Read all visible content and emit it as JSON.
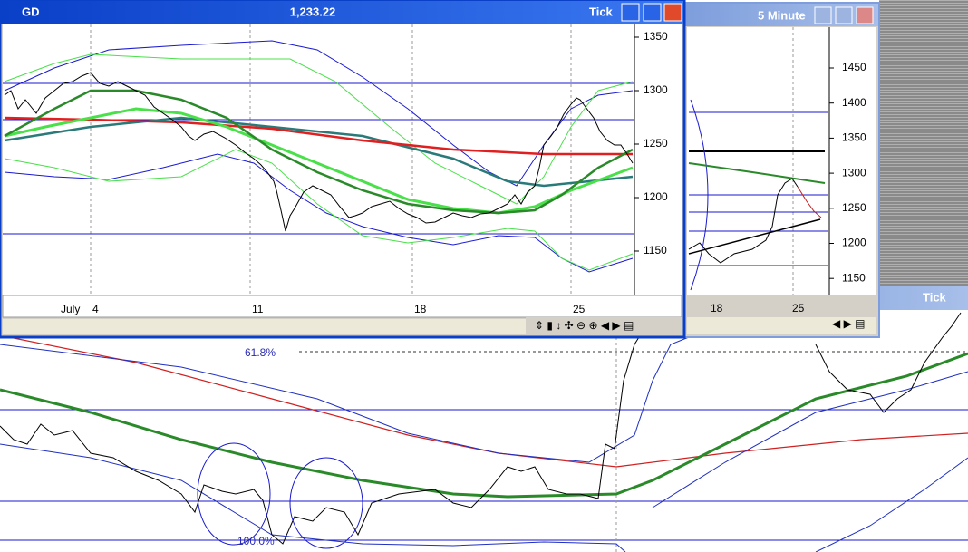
{
  "main_window": {
    "symbol": "GD",
    "price": "1,233.22",
    "interval": "Tick",
    "yticks": [
      1350,
      1300,
      1250,
      1200,
      1150
    ],
    "dates": [
      "July",
      "4",
      "11",
      "18",
      "25"
    ]
  },
  "minute_window": {
    "title": "5 Minute",
    "yticks": [
      1450,
      1400,
      1350,
      1300,
      1250,
      1200,
      1150
    ],
    "dates": [
      "18",
      "25"
    ]
  },
  "tick_window": {
    "title": "Tick"
  },
  "background_chart": {
    "fib_labels": [
      "61.8%",
      "100.0%"
    ]
  }
}
